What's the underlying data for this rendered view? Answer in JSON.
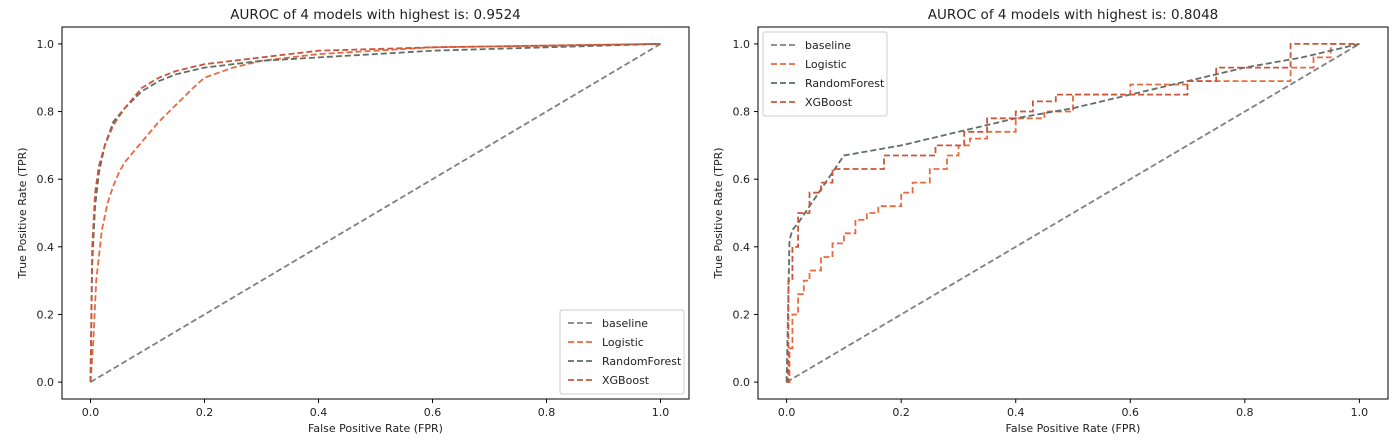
{
  "chart_data": [
    {
      "type": "line",
      "title": "AUROC of 4 models with highest is: 0.9524",
      "xlabel": "False Positive Rate (FPR)",
      "ylabel": "True Positive Rate (TPR)",
      "xlim": [
        -0.05,
        1.05
      ],
      "ylim": [
        -0.05,
        1.05
      ],
      "xticks": [
        "0.0",
        "0.2",
        "0.4",
        "0.6",
        "0.8",
        "1.0"
      ],
      "yticks": [
        "0.0",
        "0.2",
        "0.4",
        "0.6",
        "0.8",
        "1.0"
      ],
      "legend_position": "lower-right",
      "series": [
        {
          "name": "baseline",
          "color": "#808080",
          "x": [
            0,
            1
          ],
          "y": [
            0,
            1
          ]
        },
        {
          "name": "Logistic",
          "color": "#e86a3e",
          "x": [
            0,
            0.005,
            0.01,
            0.02,
            0.03,
            0.04,
            0.05,
            0.06,
            0.08,
            0.1,
            0.12,
            0.15,
            0.18,
            0.2,
            0.25,
            0.3,
            0.4,
            0.5,
            0.6,
            0.8,
            1.0
          ],
          "y": [
            0,
            0.12,
            0.3,
            0.45,
            0.53,
            0.58,
            0.62,
            0.65,
            0.69,
            0.73,
            0.77,
            0.82,
            0.87,
            0.9,
            0.93,
            0.95,
            0.97,
            0.98,
            0.99,
            0.995,
            1.0
          ]
        },
        {
          "name": "RandomForest",
          "color": "#5f6e66",
          "x": [
            0,
            0.003,
            0.008,
            0.015,
            0.025,
            0.04,
            0.06,
            0.09,
            0.12,
            0.15,
            0.2,
            0.3,
            0.4,
            0.5,
            0.6,
            0.8,
            1.0
          ],
          "y": [
            0,
            0.35,
            0.52,
            0.62,
            0.7,
            0.77,
            0.81,
            0.86,
            0.89,
            0.91,
            0.93,
            0.95,
            0.96,
            0.97,
            0.98,
            0.99,
            1.0
          ]
        },
        {
          "name": "XGBoost",
          "color": "#c9553b",
          "x": [
            0,
            0.003,
            0.008,
            0.015,
            0.025,
            0.04,
            0.06,
            0.09,
            0.12,
            0.15,
            0.2,
            0.25,
            0.3,
            0.4,
            0.5,
            0.6,
            0.8,
            1.0
          ],
          "y": [
            0,
            0.4,
            0.56,
            0.64,
            0.7,
            0.76,
            0.81,
            0.87,
            0.9,
            0.92,
            0.94,
            0.95,
            0.96,
            0.98,
            0.985,
            0.99,
            0.995,
            1.0
          ]
        }
      ]
    },
    {
      "type": "line",
      "title": "AUROC of 4 models with highest is: 0.8048",
      "xlabel": "False Positive Rate (FPR)",
      "ylabel": "True Positive Rate (TPR)",
      "xlim": [
        -0.05,
        1.05
      ],
      "ylim": [
        -0.05,
        1.05
      ],
      "xticks": [
        "0.0",
        "0.2",
        "0.4",
        "0.6",
        "0.8",
        "1.0"
      ],
      "yticks": [
        "0.0",
        "0.2",
        "0.4",
        "0.6",
        "0.8",
        "1.0"
      ],
      "legend_position": "upper-left",
      "series": [
        {
          "name": "baseline",
          "color": "#808080",
          "x": [
            0,
            1
          ],
          "y": [
            0,
            1
          ]
        },
        {
          "name": "Logistic",
          "color": "#e86a3e",
          "x": [
            0,
            0.005,
            0.005,
            0.01,
            0.01,
            0.02,
            0.02,
            0.03,
            0.03,
            0.04,
            0.04,
            0.06,
            0.06,
            0.08,
            0.08,
            0.1,
            0.1,
            0.12,
            0.12,
            0.14,
            0.14,
            0.16,
            0.16,
            0.2,
            0.2,
            0.22,
            0.22,
            0.25,
            0.25,
            0.28,
            0.28,
            0.3,
            0.3,
            0.32,
            0.32,
            0.35,
            0.35,
            0.4,
            0.4,
            0.45,
            0.45,
            0.5,
            0.5,
            0.6,
            0.6,
            0.7,
            0.7,
            0.8,
            0.8,
            0.88,
            0.88,
            0.92,
            0.92,
            0.95,
            0.95,
            1.0
          ],
          "y": [
            0,
            0,
            0.1,
            0.1,
            0.2,
            0.2,
            0.26,
            0.26,
            0.3,
            0.3,
            0.33,
            0.33,
            0.37,
            0.37,
            0.41,
            0.41,
            0.44,
            0.44,
            0.48,
            0.48,
            0.5,
            0.5,
            0.52,
            0.52,
            0.56,
            0.56,
            0.59,
            0.59,
            0.63,
            0.63,
            0.67,
            0.67,
            0.7,
            0.7,
            0.72,
            0.72,
            0.74,
            0.74,
            0.78,
            0.78,
            0.8,
            0.8,
            0.85,
            0.85,
            0.88,
            0.88,
            0.89,
            0.89,
            0.89,
            0.89,
            0.93,
            0.93,
            0.96,
            0.96,
            1.0,
            1.0
          ]
        },
        {
          "name": "RandomForest",
          "color": "#5f6e66",
          "x": [
            0,
            0.005,
            0.01,
            0.02,
            0.04,
            0.06,
            0.08,
            0.1,
            0.2,
            0.3,
            0.4,
            0.5,
            0.6,
            0.7,
            0.8,
            0.9,
            1.0
          ],
          "y": [
            0,
            0.42,
            0.45,
            0.47,
            0.52,
            0.57,
            0.62,
            0.67,
            0.7,
            0.74,
            0.78,
            0.81,
            0.85,
            0.89,
            0.93,
            0.96,
            1.0
          ]
        },
        {
          "name": "XGBoost",
          "color": "#c9553b",
          "x": [
            0,
            0.003,
            0.003,
            0.01,
            0.01,
            0.02,
            0.02,
            0.04,
            0.04,
            0.06,
            0.06,
            0.08,
            0.08,
            0.17,
            0.17,
            0.26,
            0.26,
            0.31,
            0.31,
            0.35,
            0.35,
            0.4,
            0.4,
            0.43,
            0.43,
            0.47,
            0.47,
            0.6,
            0.6,
            0.7,
            0.7,
            0.75,
            0.75,
            0.88,
            0.88,
            1.0
          ],
          "y": [
            0,
            0,
            0.3,
            0.3,
            0.4,
            0.4,
            0.5,
            0.5,
            0.56,
            0.56,
            0.59,
            0.59,
            0.63,
            0.63,
            0.67,
            0.67,
            0.7,
            0.7,
            0.74,
            0.74,
            0.78,
            0.78,
            0.8,
            0.8,
            0.83,
            0.83,
            0.85,
            0.85,
            0.85,
            0.85,
            0.89,
            0.89,
            0.93,
            0.93,
            1.0,
            1.0
          ]
        }
      ]
    }
  ]
}
